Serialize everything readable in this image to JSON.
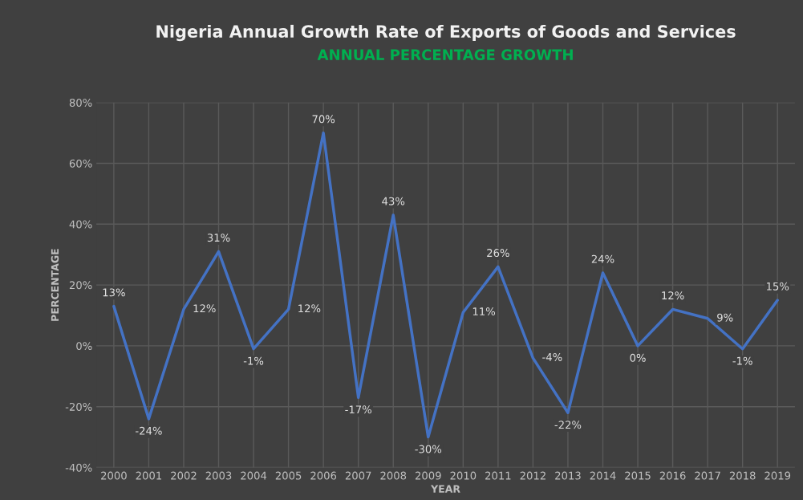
{
  "chart_data": {
    "type": "line",
    "title": "Nigeria Annual Growth Rate of Exports of Goods and Services",
    "subtitle": "ANNUAL PERCENTAGE GROWTH",
    "xlabel": "YEAR",
    "ylabel": "PERCENTAGE",
    "categories": [
      "2000",
      "2001",
      "2002",
      "2003",
      "2004",
      "2005",
      "2006",
      "2007",
      "2008",
      "2009",
      "2010",
      "2011",
      "2012",
      "2013",
      "2014",
      "2015",
      "2016",
      "2017",
      "2018",
      "2019"
    ],
    "series": [
      {
        "color": "#4472c4",
        "values": [
          13,
          -24,
          12,
          31,
          -1,
          12,
          70,
          -17,
          43,
          -30,
          11,
          26,
          -4,
          -22,
          24,
          0,
          12,
          9,
          -1,
          15
        ],
        "value_labels": [
          "13%",
          "-24%",
          "12%",
          "31%",
          "-1%",
          "12%",
          "70%",
          "-17%",
          "43%",
          "-30%",
          "11%",
          "26%",
          "-4%",
          "-22%",
          "24%",
          "0%",
          "12%",
          "9%",
          "-1%",
          "15%"
        ]
      }
    ],
    "ylim": [
      -40,
      80
    ],
    "yticks": [
      {
        "value": -40,
        "label": "-40%"
      },
      {
        "value": -20,
        "label": "-20%"
      },
      {
        "value": 0,
        "label": "0%"
      },
      {
        "value": 20,
        "label": "20%"
      },
      {
        "value": 40,
        "label": "40%"
      },
      {
        "value": 60,
        "label": "60%"
      },
      {
        "value": 80,
        "label": "80%"
      }
    ],
    "grid": true,
    "legend": false,
    "marker": "none",
    "line_style": "solid"
  }
}
